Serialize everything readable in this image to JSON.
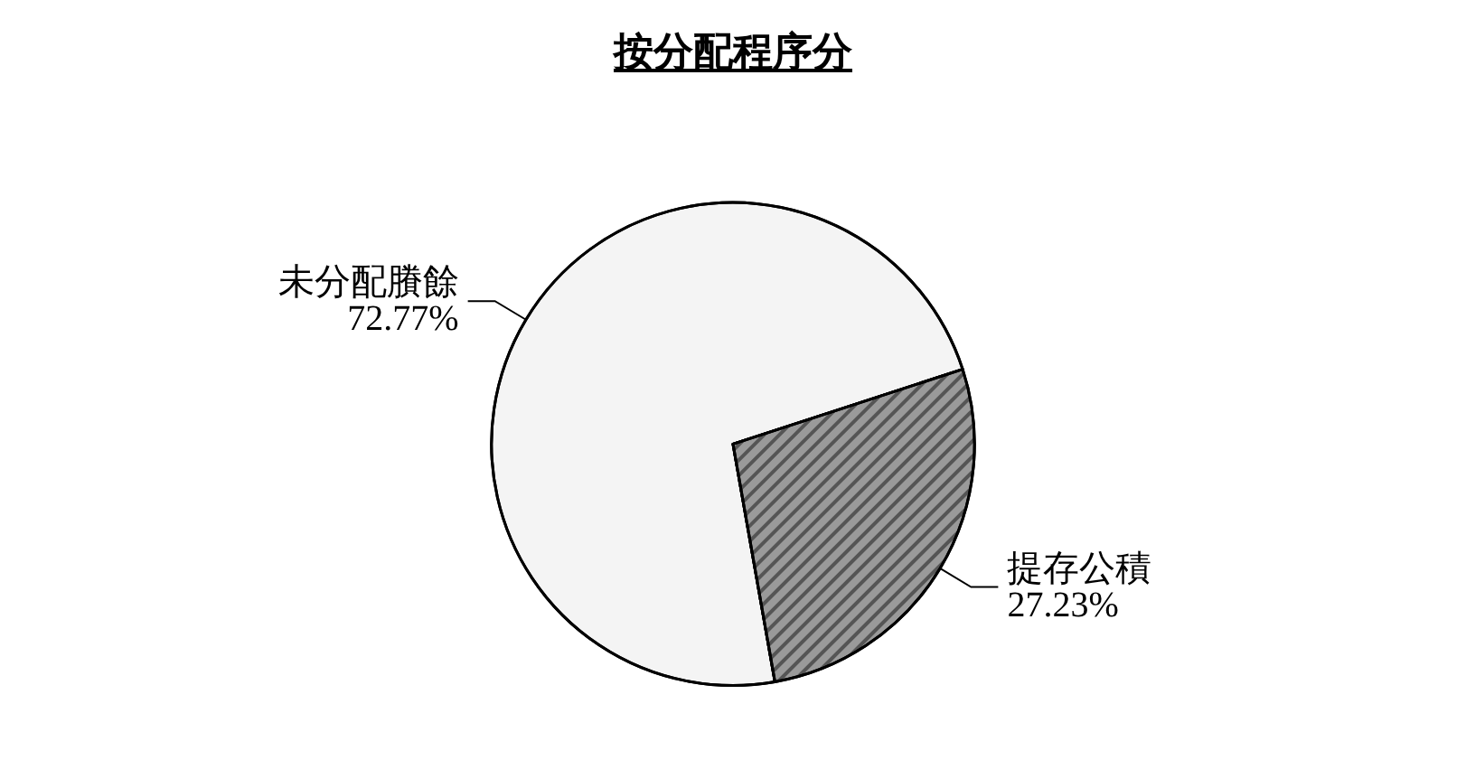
{
  "chart_data": {
    "type": "pie",
    "title": "按分配程序分",
    "categories": [
      "未分配賸餘",
      "提存公積"
    ],
    "values": [
      72.77,
      27.23
    ],
    "value_labels": [
      "72.77%",
      "27.23%"
    ],
    "colors": [
      "#f4f4f4",
      "#9a9a9a"
    ]
  }
}
